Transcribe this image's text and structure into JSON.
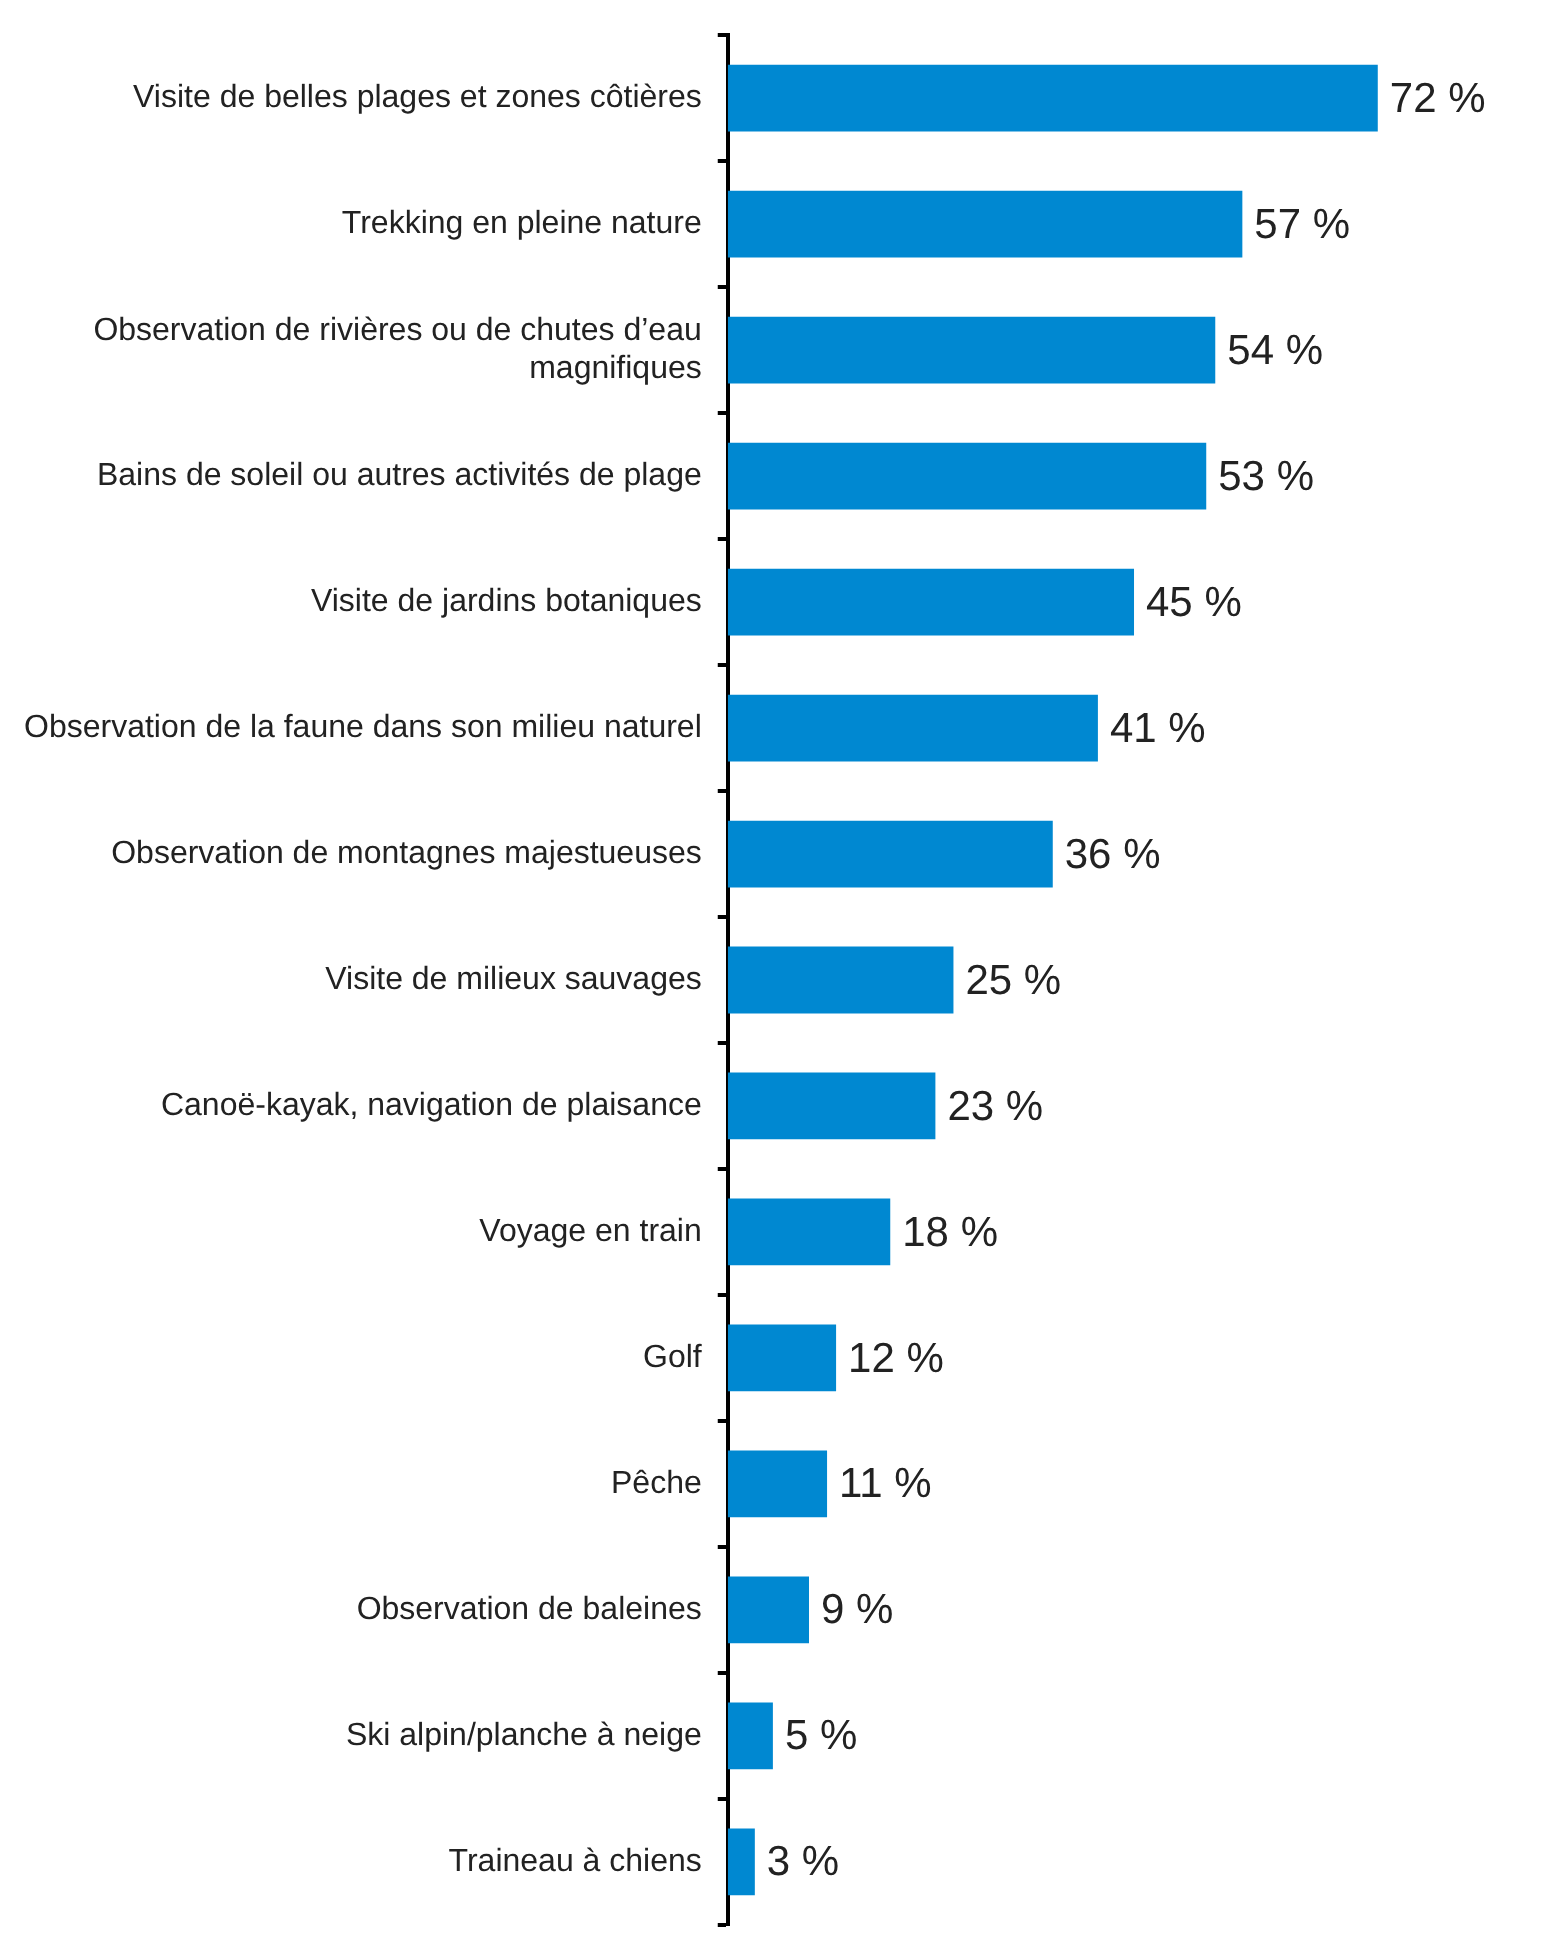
{
  "chart_data": {
    "type": "bar",
    "orientation": "horizontal",
    "categories": [
      "Visite de belles plages et zones côtières",
      "Trekking en pleine nature",
      "Observation de rivières ou de chutes d’eau magnifiques",
      "Bains de soleil ou autres activités de plage",
      "Visite de jardins botaniques",
      "Observation de la faune dans son milieu naturel",
      "Observation de montagnes majestueuses",
      "Visite de milieux sauvages",
      "Canoë-kayak, navigation de plaisance",
      "Voyage en train",
      "Golf",
      "Pêche",
      "Observation de baleines",
      "Ski alpin/planche à neige",
      "Traineau à chiens"
    ],
    "values": [
      72,
      57,
      54,
      53,
      45,
      41,
      36,
      25,
      23,
      18,
      12,
      11,
      9,
      5,
      3
    ],
    "value_labels": [
      "72 %",
      "57 %",
      "54 %",
      "53 %",
      "45 %",
      "41 %",
      "36 %",
      "25 %",
      "23 %",
      "18 %",
      "12 %",
      "11 %",
      "9 %",
      "5 %",
      "3 %"
    ],
    "color": "#0088d1",
    "tick_labels": "y"
  }
}
